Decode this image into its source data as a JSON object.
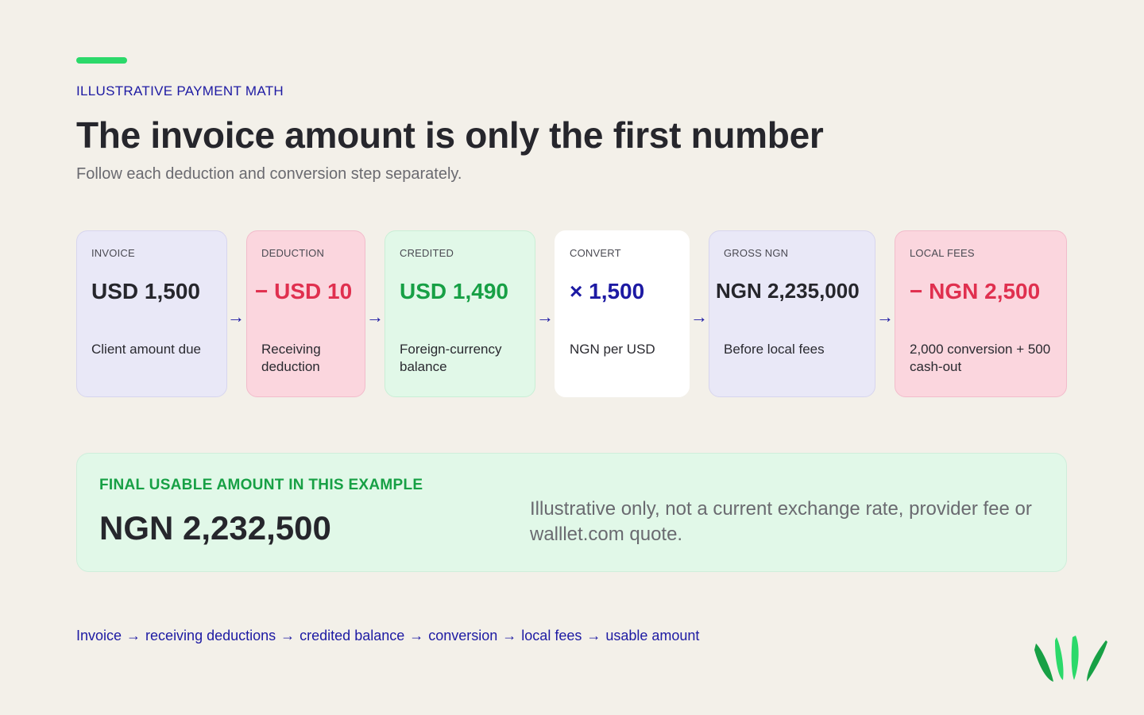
{
  "eyebrow": "ILLUSTRATIVE PAYMENT MATH",
  "headline": "The invoice amount is only the first number",
  "subhead": "Follow each deduction and conversion step separately.",
  "steps": [
    {
      "label": "INVOICE",
      "value": "USD 1,500",
      "desc": "Client amount due"
    },
    {
      "label": "DEDUCTION",
      "value": "− USD 10",
      "desc": "Receiving deduction"
    },
    {
      "label": "CREDITED",
      "value": "USD 1,490",
      "desc": "Foreign-currency balance"
    },
    {
      "label": "CONVERT",
      "value": "× 1,500",
      "desc": "NGN per USD"
    },
    {
      "label": "GROSS NGN",
      "value": "NGN 2,235,000",
      "desc": "Before local fees"
    },
    {
      "label": "LOCAL FEES",
      "value": "− NGN 2,500",
      "desc": "2,000 conversion + 500 cash-out"
    }
  ],
  "arrow_glyph": "→",
  "final": {
    "label": "FINAL USABLE AMOUNT IN THIS EXAMPLE",
    "value": "NGN 2,232,500",
    "note": "Illustrative only, not a current exchange rate, provider fee or walllet.com quote."
  },
  "flow": {
    "items": [
      "Invoice",
      "receiving deductions",
      "credited balance",
      "conversion",
      "local fees",
      "usable amount"
    ],
    "separator": "→"
  },
  "colors": {
    "accent_green": "#2bd96a",
    "navy": "#1d1aa3",
    "red": "#e0304f",
    "green": "#17a045",
    "background": "#f3f0e9"
  },
  "icons": {
    "logo": "walllet-logo-icon",
    "step_arrow": "arrow-right-icon"
  }
}
